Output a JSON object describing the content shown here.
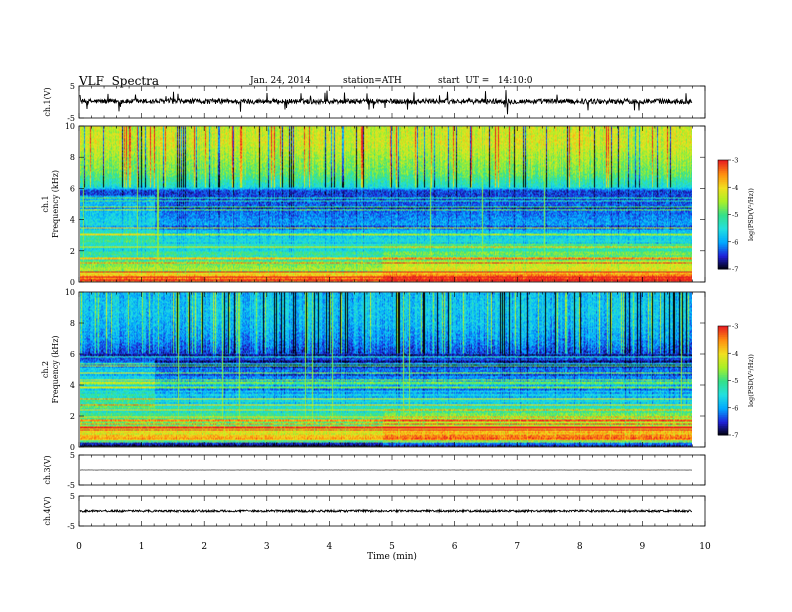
{
  "header": {
    "title": "VLF  Spectra",
    "date": "Jan. 24, 2014",
    "station": "station=ATH",
    "start_ut": "start  UT =   14:10:0"
  },
  "chart_data": [
    {
      "type": "line",
      "name": "ch1-waveform",
      "ylabel": "ch.1(V)",
      "ylim": [
        -5,
        5
      ],
      "y_ticks": [
        "5",
        "-5"
      ],
      "xlim": [
        0,
        10
      ],
      "data_end_min": 9.8,
      "level": 0.2,
      "amplitude": 0.8
    },
    {
      "type": "heatmap",
      "name": "ch1-spectrogram",
      "ylabel": "Frequency (kHz)",
      "channel_label": "ch.1",
      "ylim": [
        0,
        10
      ],
      "y_ticks": [
        "0",
        "2",
        "4",
        "6",
        "8",
        "10"
      ],
      "xlim": [
        0,
        10
      ],
      "data_end_min": 9.8,
      "colorbar": {
        "label": "log(PSD(V²/Hz))",
        "range": [
          -7,
          -3
        ],
        "ticks": [
          "-3",
          "-4",
          "-5",
          "-6",
          "-7"
        ]
      },
      "profile_khz": [
        [
          0,
          -3.3
        ],
        [
          0.3,
          -3.5
        ],
        [
          0.6,
          -4.2
        ],
        [
          1.0,
          -4.6
        ],
        [
          1.6,
          -5.0
        ],
        [
          2.2,
          -5.2
        ],
        [
          2.8,
          -5.6
        ],
        [
          3.5,
          -5.9
        ],
        [
          4.5,
          -6.2
        ],
        [
          5.6,
          -6.4
        ],
        [
          5.9,
          -6.4
        ],
        [
          6.1,
          -5.5
        ],
        [
          7.0,
          -4.8
        ],
        [
          8.0,
          -4.5
        ],
        [
          9.0,
          -4.2
        ],
        [
          10.0,
          -4.3
        ]
      ],
      "upper_band_change_min": 1.2,
      "mid_band_change_min": 4.85
    },
    {
      "type": "heatmap",
      "name": "ch2-spectrogram",
      "ylabel": "Frequency (kHz)",
      "channel_label": "ch.2",
      "ylim": [
        0,
        10
      ],
      "y_ticks": [
        "0",
        "2",
        "4",
        "6",
        "8",
        "10"
      ],
      "xlim": [
        0,
        10
      ],
      "data_end_min": 9.8,
      "colorbar": {
        "label": "log(PSD(V²/Hz))",
        "range": [
          -7,
          -3
        ],
        "ticks": [
          "-3",
          "-4",
          "-5",
          "-6",
          "-7"
        ]
      },
      "profile_khz": [
        [
          0,
          -6.8
        ],
        [
          0.25,
          -6.5
        ],
        [
          0.5,
          -3.6
        ],
        [
          0.9,
          -4.0
        ],
        [
          1.4,
          -4.6
        ],
        [
          2.0,
          -5.0
        ],
        [
          2.6,
          -5.3
        ],
        [
          3.2,
          -5.6
        ],
        [
          4.0,
          -5.9
        ],
        [
          5.0,
          -6.2
        ],
        [
          6.0,
          -6.4
        ],
        [
          7.0,
          -6.0
        ],
        [
          8.0,
          -5.8
        ],
        [
          9.0,
          -5.7
        ],
        [
          10.0,
          -5.8
        ]
      ],
      "upper_band_change_min": 1.2,
      "mid_band_change_min": 4.85
    },
    {
      "type": "line",
      "name": "ch3-waveform",
      "ylabel": "ch.3(V)",
      "ylim": [
        -5,
        5
      ],
      "y_ticks": [
        "5",
        "-5"
      ],
      "xlim": [
        0,
        10
      ],
      "data_end_min": 9.8,
      "level": 0.0,
      "amplitude": 0.05
    },
    {
      "type": "line",
      "name": "ch4-waveform",
      "ylabel": "ch.4(V)",
      "ylim": [
        -5,
        5
      ],
      "y_ticks": [
        "5",
        "-5"
      ],
      "xlim": [
        0,
        10
      ],
      "data_end_min": 9.8,
      "level": 0.0,
      "amplitude": 0.35
    }
  ],
  "x_axis": {
    "label": "Time  (min)",
    "ticks": [
      "0",
      "1",
      "2",
      "3",
      "4",
      "5",
      "6",
      "7",
      "8",
      "9",
      "10"
    ]
  },
  "colorscale": [
    "#000000",
    "#2020d8",
    "#00a8ff",
    "#22e0e0",
    "#34e08a",
    "#a8f028",
    "#f0e020",
    "#ff9010",
    "#e82020",
    "#ffffff"
  ]
}
